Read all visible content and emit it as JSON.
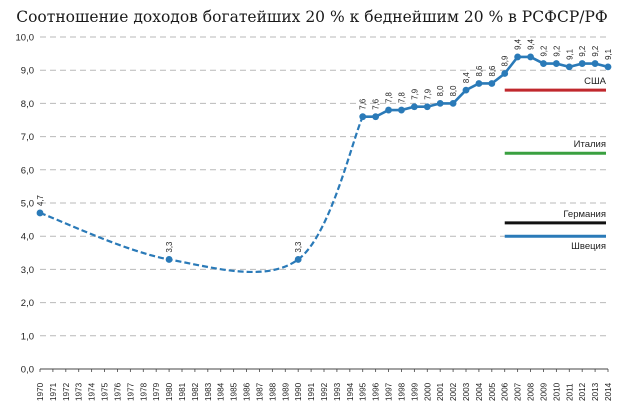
{
  "chart_data": {
    "type": "line",
    "title": "Соотношение доходов богатейших 20 % к беднейшим 20 % в РСФСР/РФ",
    "ylim": [
      0,
      10
    ],
    "yticks": [
      "0,0",
      "1,0",
      "2,0",
      "3,0",
      "4,0",
      "5,0",
      "6,0",
      "7,0",
      "8,0",
      "9,0",
      "10,0"
    ],
    "grid": "horizontal dashed",
    "categories": [
      "1970",
      "1971",
      "1972",
      "1973",
      "1974",
      "1975",
      "1976",
      "1977",
      "1978",
      "1979",
      "1980",
      "1981",
      "1982",
      "1983",
      "1984",
      "1985",
      "1986",
      "1987",
      "1988",
      "1989",
      "1990",
      "1991",
      "1992",
      "1993",
      "1994",
      "1995",
      "1996",
      "1997",
      "1998",
      "1999",
      "2000",
      "2001",
      "2002",
      "2003",
      "2004",
      "2005",
      "2006",
      "2007",
      "2008",
      "2009",
      "2010",
      "2011",
      "2012",
      "2013",
      "2014"
    ],
    "series": [
      {
        "color": "#2a7ab8",
        "dashed_segment": [
          [
            "1970",
            4.7
          ],
          [
            "1980",
            3.3
          ],
          [
            "1990",
            3.3
          ],
          [
            "1995",
            7.6
          ]
        ],
        "points": [
          {
            "x": "1970",
            "y": 4.7,
            "label": "4,7"
          },
          {
            "x": "1980",
            "y": 3.3,
            "label": "3,3"
          },
          {
            "x": "1990",
            "y": 3.3,
            "label": "3,3"
          },
          {
            "x": "1995",
            "y": 7.6,
            "label": "7,6"
          },
          {
            "x": "1996",
            "y": 7.6,
            "label": "7,6"
          },
          {
            "x": "1997",
            "y": 7.8,
            "label": "7,8"
          },
          {
            "x": "1998",
            "y": 7.8,
            "label": "7,8"
          },
          {
            "x": "1999",
            "y": 7.9,
            "label": "7,9"
          },
          {
            "x": "2000",
            "y": 7.9,
            "label": "7,9"
          },
          {
            "x": "2001",
            "y": 8.0,
            "label": "8,0"
          },
          {
            "x": "2002",
            "y": 8.0,
            "label": "8,0"
          },
          {
            "x": "2003",
            "y": 8.4,
            "label": "8,4"
          },
          {
            "x": "2004",
            "y": 8.6,
            "label": "8,6"
          },
          {
            "x": "2005",
            "y": 8.6,
            "label": "8,6"
          },
          {
            "x": "2006",
            "y": 8.9,
            "label": "8,9"
          },
          {
            "x": "2007",
            "y": 9.4,
            "label": "9,4"
          },
          {
            "x": "2008",
            "y": 9.4,
            "label": "9,4"
          },
          {
            "x": "2009",
            "y": 9.2,
            "label": "9,2"
          },
          {
            "x": "2010",
            "y": 9.2,
            "label": "9,2"
          },
          {
            "x": "2011",
            "y": 9.1,
            "label": "9,1"
          },
          {
            "x": "2012",
            "y": 9.2,
            "label": "9,2"
          },
          {
            "x": "2013",
            "y": 9.2,
            "label": "9,2"
          },
          {
            "x": "2014",
            "y": 9.1,
            "label": "9,1"
          }
        ]
      }
    ],
    "reference_lines": [
      {
        "label": "США",
        "y": 8.4,
        "x_start": "2006",
        "x_end": "2014",
        "color": "#c0282d"
      },
      {
        "label": "Италия",
        "y": 6.5,
        "x_start": "2006",
        "x_end": "2014",
        "color": "#3aa040"
      },
      {
        "label": "Германия",
        "y": 4.4,
        "x_start": "2006",
        "x_end": "2014",
        "color": "#111111"
      },
      {
        "label": "Швеция",
        "y": 4.0,
        "x_start": "2006",
        "x_end": "2014",
        "color": "#2a7ab8"
      }
    ]
  }
}
